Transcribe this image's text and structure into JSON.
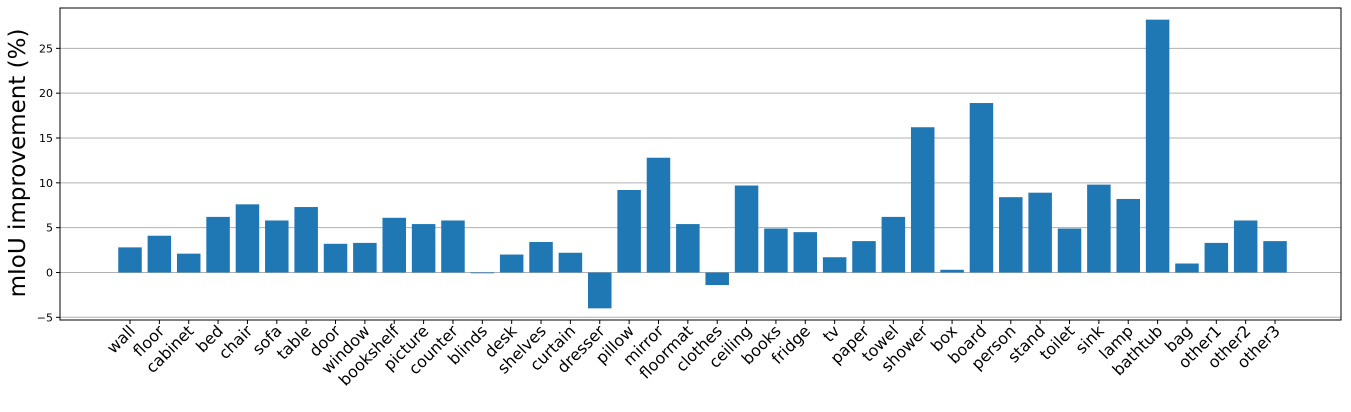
{
  "chart_data": {
    "type": "bar",
    "title": "",
    "xlabel": "",
    "ylabel": "mIoU improvement (%)",
    "categories": [
      "wall",
      "floor",
      "cabinet",
      "bed",
      "chair",
      "sofa",
      "table",
      "door",
      "window",
      "bookshelf",
      "picture",
      "counter",
      "blinds",
      "desk",
      "shelves",
      "curtain",
      "dresser",
      "pillow",
      "mirror",
      "floormat",
      "clothes",
      "ceiling",
      "books",
      "fridge",
      "tv",
      "paper",
      "towel",
      "shower",
      "box",
      "board",
      "person",
      "stand",
      "toilet",
      "sink",
      "lamp",
      "bathtub",
      "bag",
      "other1",
      "other2",
      "other3"
    ],
    "values": [
      2.8,
      4.1,
      2.1,
      6.2,
      7.6,
      5.8,
      7.3,
      3.2,
      3.3,
      6.1,
      5.4,
      5.8,
      0.0,
      2.0,
      3.4,
      2.2,
      -4.0,
      9.2,
      12.8,
      5.4,
      -1.4,
      9.7,
      4.9,
      4.5,
      1.7,
      3.5,
      6.2,
      16.2,
      0.3,
      18.9,
      8.4,
      8.9,
      4.9,
      9.8,
      8.2,
      28.2,
      1.0,
      3.3,
      5.8,
      3.5
    ],
    "ylim": [
      -5.3,
      29.5
    ],
    "yticks": [
      -5,
      0,
      5,
      10,
      15,
      20,
      25
    ],
    "grid": "horizontal",
    "bar_color": "#1f77b4",
    "grid_color": "#b0b0b0"
  }
}
